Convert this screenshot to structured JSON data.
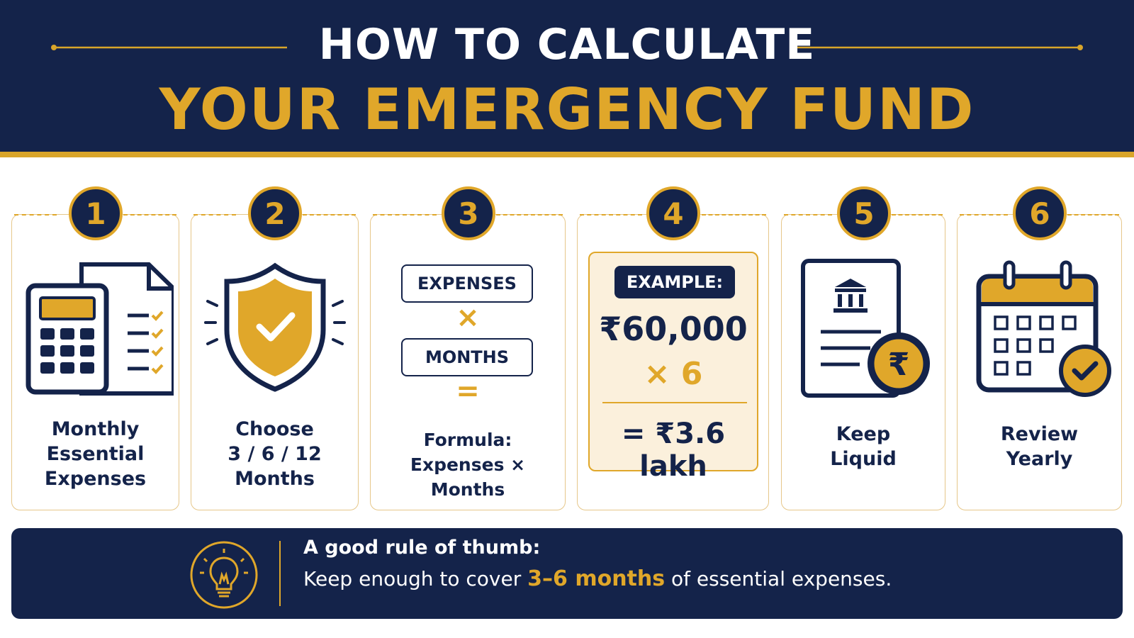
{
  "header": {
    "line1": "HOW TO CALCULATE",
    "line2": "YOUR EMERGENCY FUND"
  },
  "steps": [
    {
      "number": 1,
      "label": [
        "Monthly",
        "Essential",
        "Expenses"
      ]
    },
    {
      "number": 2,
      "label": [
        "Choose",
        "3 / 6 / 12",
        "Months"
      ]
    },
    {
      "number": 3,
      "formula": {
        "first": "EXPENSES",
        "operator": "×",
        "second": "MONTHS",
        "equals": "="
      },
      "label": [
        "Formula:",
        "Expenses × Months"
      ]
    },
    {
      "number": 4,
      "example": {
        "badge": "EXAMPLE:",
        "amount": "₹60,000",
        "multiplier": "× 6",
        "result": "= ₹3.6 lakh"
      }
    },
    {
      "number": 5,
      "label": [
        "Keep",
        "Liquid"
      ]
    },
    {
      "number": 6,
      "label": [
        "Review",
        "Yearly"
      ]
    }
  ],
  "footer": {
    "title": "A good rule of thumb:",
    "text_before": "Keep enough to cover",
    "highlight": "3–6 months",
    "text_after": "of essential expenses."
  }
}
